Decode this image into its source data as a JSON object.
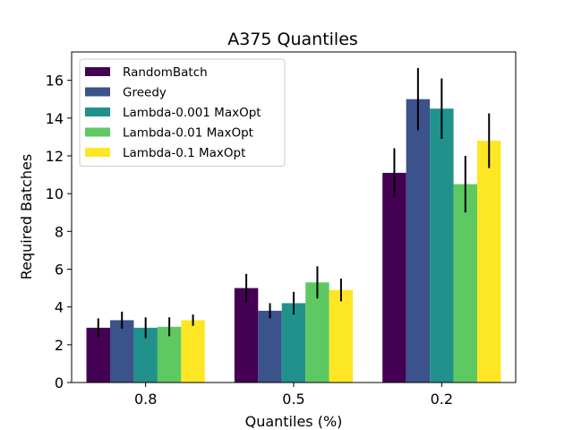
{
  "chart_data": {
    "type": "bar",
    "title": "A375 Quantiles",
    "xlabel": "Quantiles (%)",
    "ylabel": "Required Batches",
    "categories": [
      "0.8",
      "0.5",
      "0.2"
    ],
    "ylim": [
      0,
      17.5
    ],
    "yticks": [
      0,
      2,
      4,
      6,
      8,
      10,
      12,
      14,
      16
    ],
    "grid": false,
    "legend_position": "top-left",
    "series": [
      {
        "name": "RandomBatch",
        "color": "#440154",
        "values": [
          2.9,
          5.0,
          11.1
        ],
        "errors": [
          0.5,
          0.75,
          1.3
        ]
      },
      {
        "name": "Greedy",
        "color": "#3b528b",
        "values": [
          3.3,
          3.8,
          15.0
        ],
        "errors": [
          0.45,
          0.4,
          1.65
        ]
      },
      {
        "name": "Lambda-0.001 MaxOpt",
        "color": "#21918c",
        "values": [
          2.9,
          4.2,
          14.5
        ],
        "errors": [
          0.55,
          0.6,
          1.6
        ]
      },
      {
        "name": "Lambda-0.01 MaxOpt",
        "color": "#5ec962",
        "values": [
          2.95,
          5.3,
          10.5
        ],
        "errors": [
          0.5,
          0.85,
          1.5
        ]
      },
      {
        "name": "Lambda-0.1 MaxOpt",
        "color": "#fde725",
        "values": [
          3.3,
          4.9,
          12.8
        ],
        "errors": [
          0.3,
          0.6,
          1.45
        ]
      }
    ]
  }
}
